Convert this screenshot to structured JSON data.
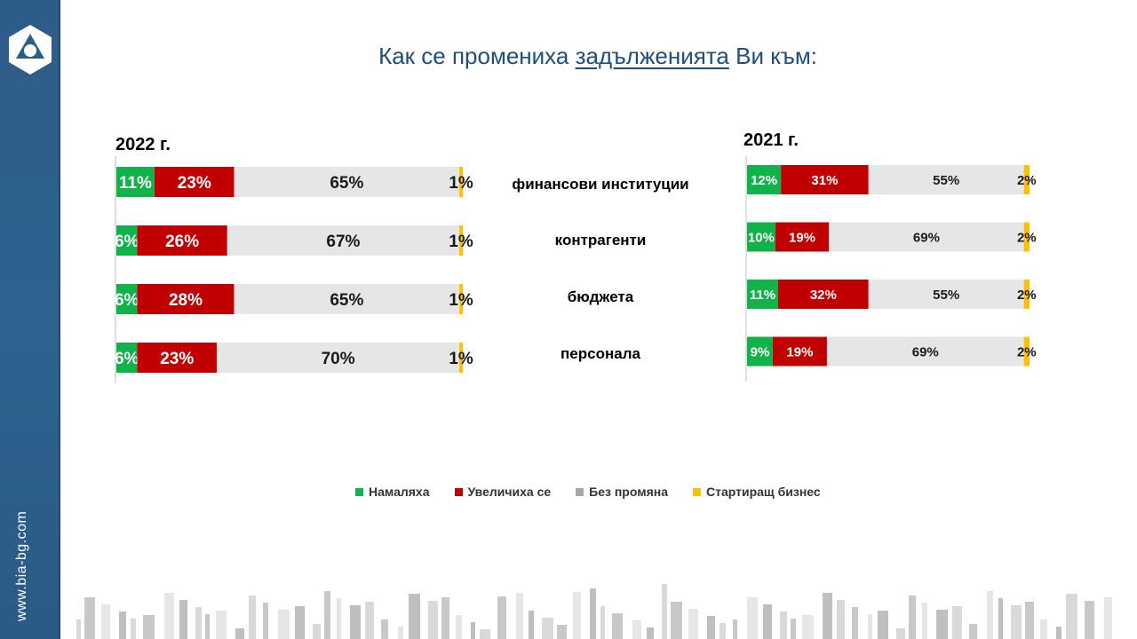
{
  "sidebar": {
    "site_url": "www.bia-bg.com",
    "logo_icon": "bia-triangle-logo-icon"
  },
  "title": {
    "prefix": "Как се промениха ",
    "underlined": "задълженията",
    "suffix": " Ви към:"
  },
  "legend": [
    {
      "label": "Намаляха",
      "color": "#12b24b"
    },
    {
      "label": "Увеличиха се",
      "color": "#c00000"
    },
    {
      "label": "Без промяна",
      "color": "#a6a6a6"
    },
    {
      "label": "Стартиращ бизнес",
      "color": "#ffc000"
    }
  ],
  "categories": [
    "финансови  институции",
    "контрагенти",
    "бюджета",
    "персонала"
  ],
  "chart_data": [
    {
      "type": "bar",
      "orientation": "horizontal",
      "stacked": true,
      "title": "2022 г.",
      "categories": [
        "финансови  институции",
        "контрагенти",
        "бюджета",
        "персонала"
      ],
      "series": [
        {
          "name": "Намаляха",
          "color": "#12b24b",
          "values": [
            11,
            6,
            6,
            6
          ]
        },
        {
          "name": "Увеличиха се",
          "color": "#c00000",
          "values": [
            23,
            26,
            28,
            23
          ]
        },
        {
          "name": "Без промяна",
          "color": "#e7e6e6",
          "values": [
            65,
            67,
            65,
            70
          ]
        },
        {
          "name": "Стартиращ бизнес",
          "color": "#ffc000",
          "values": [
            1,
            1,
            1,
            1
          ]
        }
      ],
      "label_suffix": "%",
      "xlim": [
        0,
        100
      ]
    },
    {
      "type": "bar",
      "orientation": "horizontal",
      "stacked": true,
      "title": "2021 г.",
      "categories": [
        "финансови  институции",
        "контрагенти",
        "бюджета",
        "персонала"
      ],
      "series": [
        {
          "name": "Намаляха",
          "color": "#12b24b",
          "values": [
            12,
            10,
            11,
            9
          ]
        },
        {
          "name": "Увеличиха се",
          "color": "#c00000",
          "values": [
            31,
            19,
            32,
            19
          ]
        },
        {
          "name": "Без промяна",
          "color": "#e7e6e6",
          "values": [
            55,
            69,
            55,
            69
          ]
        },
        {
          "name": "Стартиращ бизнес",
          "color": "#ffc000",
          "values": [
            2,
            2,
            2,
            2
          ]
        }
      ],
      "label_suffix": "%",
      "xlim": [
        0,
        100
      ]
    }
  ]
}
